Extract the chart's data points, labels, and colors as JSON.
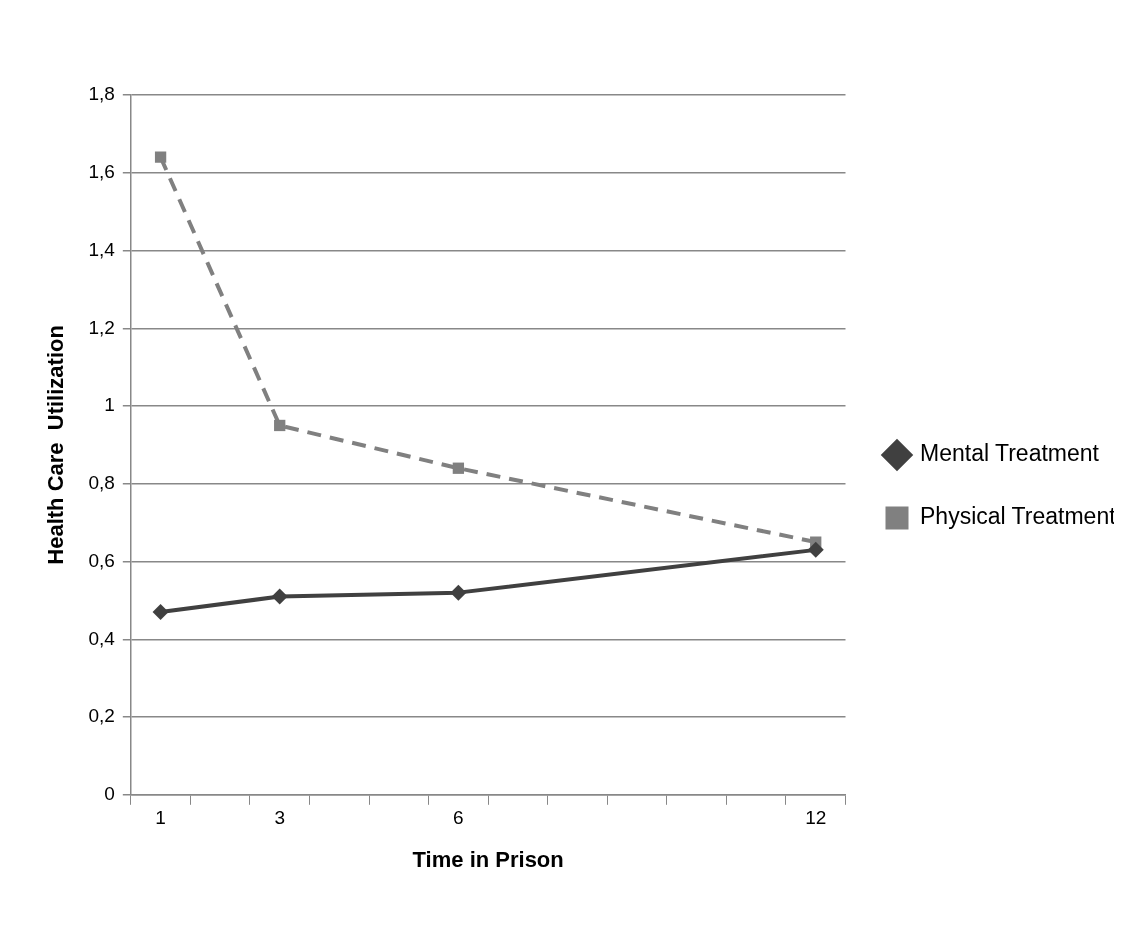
{
  "chart_data": {
    "type": "line",
    "xlabel": "Time in Prison",
    "ylabel": "Health Care  Utilization",
    "x": [
      1,
      3,
      6,
      12
    ],
    "xlim": [
      0.5,
      12.5
    ],
    "xticks": [
      {
        "value": 0.5,
        "label": null
      },
      {
        "value": 1,
        "label": "1"
      },
      {
        "value": 1.5,
        "label": null
      },
      {
        "value": 2.5,
        "label": null
      },
      {
        "value": 3,
        "label": "3"
      },
      {
        "value": 3.5,
        "label": null
      },
      {
        "value": 4.5,
        "label": null
      },
      {
        "value": 5.5,
        "label": null
      },
      {
        "value": 6,
        "label": "6"
      },
      {
        "value": 6.5,
        "label": null
      },
      {
        "value": 7.5,
        "label": null
      },
      {
        "value": 8.5,
        "label": null
      },
      {
        "value": 9.5,
        "label": null
      },
      {
        "value": 10.5,
        "label": null
      },
      {
        "value": 11.5,
        "label": null
      },
      {
        "value": 12,
        "label": "12"
      },
      {
        "value": 12.5,
        "label": null
      }
    ],
    "ylim": [
      0,
      1.8
    ],
    "yticks": [
      0,
      {
        "value": 0.2,
        "label": "0,2"
      },
      {
        "value": 0.4,
        "label": "0,4"
      },
      {
        "value": 0.6,
        "label": "0,6"
      },
      {
        "value": 0.8,
        "label": "0,8"
      },
      1,
      {
        "value": 1.2,
        "label": "1,2"
      },
      {
        "value": 1.4,
        "label": "1,4"
      },
      {
        "value": 1.6,
        "label": "1,6"
      },
      {
        "value": 1.8,
        "label": "1,8"
      }
    ],
    "grid": "y",
    "legend": "right",
    "series": [
      {
        "name": "Mental Treatment",
        "color": "#404040",
        "marker": "diamond",
        "line_style": "solid",
        "values": [
          0.47,
          0.51,
          0.52,
          0.63
        ]
      },
      {
        "name": "Physical Treatment",
        "color": "#808080",
        "marker": "square",
        "line_style": "dashed",
        "values": [
          1.64,
          0.95,
          0.84,
          0.65
        ]
      }
    ]
  }
}
